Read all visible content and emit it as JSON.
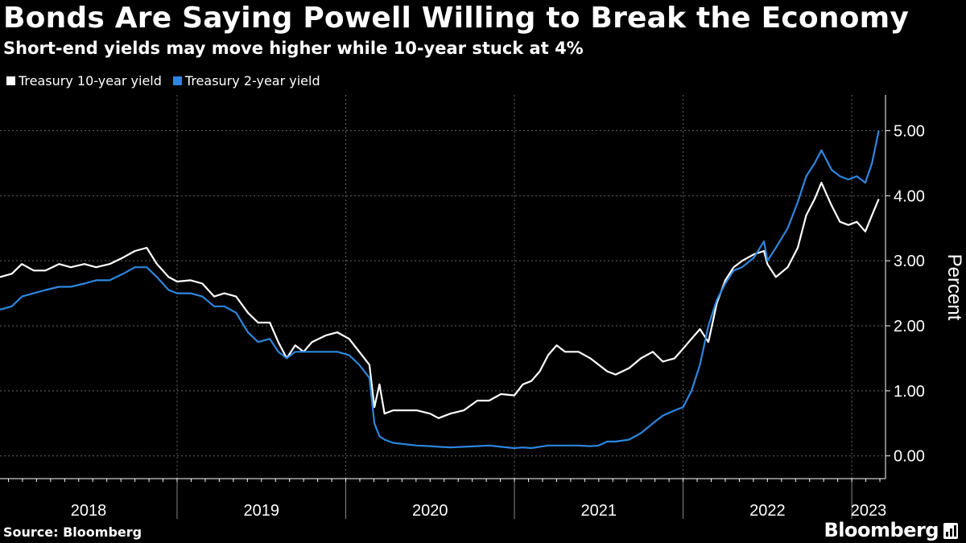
{
  "title": "Bonds Are Saying Powell Willing to Break the Economy",
  "subtitle": "Short-end yields may move higher while 10-year stuck at 4%",
  "source": "Source: Bloomberg",
  "brand": "Bloomberg",
  "colors": {
    "background": "#000000",
    "ten_year": "#ffffff",
    "two_year": "#2e86de",
    "grid": "#666666"
  },
  "chart_data": {
    "type": "line",
    "title": "Bonds Are Saying Powell Willing to Break the Economy",
    "subtitle": "Short-end yields may move higher while 10-year stuck at 4%",
    "xlabel": "",
    "ylabel": "Percent",
    "ylim": [
      -0.35,
      5.55
    ],
    "xlim": [
      2017.95,
      2023.2
    ],
    "grid": true,
    "legend": "top-left",
    "x_ticks": [
      "2018",
      "2019",
      "2020",
      "2021",
      "2022",
      "2023"
    ],
    "y_ticks": [
      "0.00",
      "1.00",
      "2.00",
      "3.00",
      "4.00",
      "5.00"
    ],
    "series": [
      {
        "name": "Treasury 10-year yield",
        "color": "#ffffff",
        "x": [
          2017.95,
          2018.02,
          2018.08,
          2018.15,
          2018.22,
          2018.3,
          2018.37,
          2018.45,
          2018.52,
          2018.6,
          2018.68,
          2018.75,
          2018.82,
          2018.88,
          2018.95,
          2019.0,
          2019.08,
          2019.15,
          2019.22,
          2019.28,
          2019.35,
          2019.42,
          2019.48,
          2019.55,
          2019.6,
          2019.65,
          2019.7,
          2019.75,
          2019.8,
          2019.88,
          2019.95,
          2020.02,
          2020.08,
          2020.14,
          2020.17,
          2020.2,
          2020.23,
          2020.28,
          2020.35,
          2020.42,
          2020.5,
          2020.55,
          2020.62,
          2020.7,
          2020.78,
          2020.85,
          2020.92,
          2021.0,
          2021.05,
          2021.1,
          2021.15,
          2021.2,
          2021.25,
          2021.3,
          2021.38,
          2021.45,
          2021.5,
          2021.55,
          2021.6,
          2021.68,
          2021.75,
          2021.82,
          2021.88,
          2021.95,
          2022.0,
          2022.05,
          2022.1,
          2022.15,
          2022.2,
          2022.25,
          2022.3,
          2022.35,
          2022.42,
          2022.48,
          2022.5,
          2022.55,
          2022.62,
          2022.68,
          2022.73,
          2022.78,
          2022.82,
          2022.88,
          2022.93,
          2022.98,
          2023.03,
          2023.08,
          2023.12,
          2023.16
        ],
        "values": [
          2.75,
          2.8,
          2.95,
          2.85,
          2.85,
          2.95,
          2.9,
          2.95,
          2.9,
          2.95,
          3.05,
          3.15,
          3.2,
          2.95,
          2.75,
          2.68,
          2.7,
          2.65,
          2.45,
          2.5,
          2.45,
          2.2,
          2.05,
          2.05,
          1.75,
          1.5,
          1.7,
          1.6,
          1.75,
          1.85,
          1.9,
          1.8,
          1.6,
          1.4,
          0.75,
          1.1,
          0.65,
          0.7,
          0.7,
          0.7,
          0.65,
          0.58,
          0.65,
          0.7,
          0.85,
          0.85,
          0.95,
          0.93,
          1.1,
          1.15,
          1.3,
          1.55,
          1.7,
          1.6,
          1.6,
          1.5,
          1.4,
          1.3,
          1.25,
          1.35,
          1.5,
          1.6,
          1.45,
          1.5,
          1.65,
          1.8,
          1.95,
          1.75,
          2.35,
          2.7,
          2.9,
          3.0,
          3.1,
          3.15,
          2.95,
          2.75,
          2.9,
          3.2,
          3.7,
          3.95,
          4.2,
          3.85,
          3.6,
          3.55,
          3.6,
          3.45,
          3.7,
          3.95
        ]
      },
      {
        "name": "Treasury 2-year yield",
        "color": "#2e86de",
        "x": [
          2017.95,
          2018.02,
          2018.08,
          2018.15,
          2018.22,
          2018.3,
          2018.37,
          2018.45,
          2018.52,
          2018.6,
          2018.68,
          2018.75,
          2018.82,
          2018.88,
          2018.95,
          2019.0,
          2019.08,
          2019.15,
          2019.22,
          2019.28,
          2019.35,
          2019.42,
          2019.48,
          2019.55,
          2019.6,
          2019.65,
          2019.7,
          2019.75,
          2019.8,
          2019.88,
          2019.95,
          2020.02,
          2020.08,
          2020.14,
          2020.17,
          2020.2,
          2020.23,
          2020.28,
          2020.35,
          2020.42,
          2020.5,
          2020.55,
          2020.62,
          2020.7,
          2020.78,
          2020.85,
          2020.92,
          2021.0,
          2021.05,
          2021.1,
          2021.15,
          2021.2,
          2021.25,
          2021.3,
          2021.38,
          2021.45,
          2021.5,
          2021.55,
          2021.6,
          2021.68,
          2021.75,
          2021.82,
          2021.88,
          2021.95,
          2022.0,
          2022.05,
          2022.1,
          2022.15,
          2022.2,
          2022.25,
          2022.3,
          2022.35,
          2022.42,
          2022.48,
          2022.5,
          2022.55,
          2022.62,
          2022.68,
          2022.73,
          2022.78,
          2022.82,
          2022.88,
          2022.93,
          2022.98,
          2023.03,
          2023.08,
          2023.12,
          2023.16
        ],
        "values": [
          2.25,
          2.3,
          2.45,
          2.5,
          2.55,
          2.6,
          2.6,
          2.65,
          2.7,
          2.7,
          2.8,
          2.9,
          2.9,
          2.75,
          2.55,
          2.5,
          2.5,
          2.45,
          2.3,
          2.3,
          2.2,
          1.9,
          1.75,
          1.8,
          1.6,
          1.5,
          1.6,
          1.6,
          1.6,
          1.6,
          1.6,
          1.55,
          1.4,
          1.2,
          0.5,
          0.3,
          0.25,
          0.2,
          0.18,
          0.16,
          0.15,
          0.14,
          0.13,
          0.14,
          0.15,
          0.16,
          0.14,
          0.12,
          0.13,
          0.12,
          0.14,
          0.16,
          0.16,
          0.16,
          0.16,
          0.15,
          0.16,
          0.22,
          0.22,
          0.25,
          0.35,
          0.5,
          0.62,
          0.7,
          0.75,
          1.0,
          1.4,
          2.0,
          2.4,
          2.65,
          2.85,
          2.9,
          3.05,
          3.3,
          3.0,
          3.2,
          3.5,
          3.9,
          4.3,
          4.5,
          4.7,
          4.4,
          4.3,
          4.25,
          4.3,
          4.2,
          4.5,
          5.0
        ]
      }
    ]
  }
}
